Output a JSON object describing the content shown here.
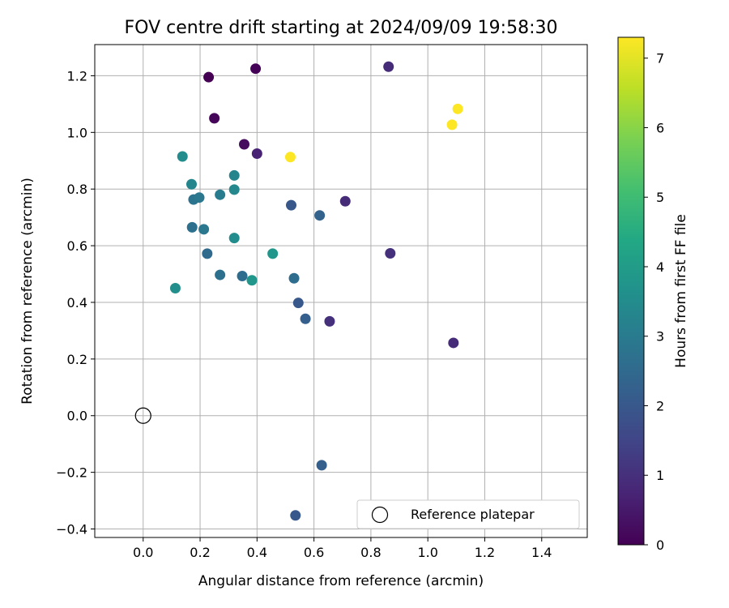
{
  "chart_data": {
    "type": "scatter",
    "title": "FOV centre drift starting at 2024/09/09 19:58:30",
    "xlabel": "Angular distance from reference (arcmin)",
    "ylabel": "Rotation from reference (arcmin)",
    "xlim": [
      -0.17,
      1.56
    ],
    "ylim": [
      -0.43,
      1.31
    ],
    "xticks": [
      0.0,
      0.2,
      0.4,
      0.6,
      0.8,
      1.0,
      1.2,
      1.4
    ],
    "xtick_labels": [
      "0.0",
      "0.2",
      "0.4",
      "0.6",
      "0.8",
      "1.0",
      "1.2",
      "1.4"
    ],
    "yticks": [
      -0.4,
      -0.2,
      0.0,
      0.2,
      0.4,
      0.6,
      0.8,
      1.0,
      1.2
    ],
    "ytick_labels": [
      "−0.4",
      "−0.2",
      "0.0",
      "0.2",
      "0.4",
      "0.6",
      "0.8",
      "1.0",
      "1.2"
    ],
    "grid": true,
    "legend": {
      "placement": "lower-right",
      "entries": [
        "Reference platepar"
      ]
    },
    "colorbar": {
      "label": "Hours from first FF file",
      "range": [
        0,
        7.3
      ],
      "ticks": [
        0,
        1,
        2,
        3,
        4,
        5,
        6,
        7
      ],
      "tick_labels": [
        "0",
        "1",
        "2",
        "3",
        "4",
        "5",
        "6",
        "7"
      ],
      "colormap": "viridis"
    },
    "reference_point": {
      "x": 0.0,
      "y": 0.0
    },
    "series": [
      {
        "points": [
          {
            "x": 0.23,
            "y": 1.195,
            "c": 0.0
          },
          {
            "x": 0.395,
            "y": 1.225,
            "c": 0.05
          },
          {
            "x": 0.25,
            "y": 1.05,
            "c": 0.1
          },
          {
            "x": 0.355,
            "y": 0.958,
            "c": 0.2
          },
          {
            "x": 0.4,
            "y": 0.925,
            "c": 0.7
          },
          {
            "x": 0.862,
            "y": 1.232,
            "c": 0.9
          },
          {
            "x": 0.71,
            "y": 0.757,
            "c": 0.9
          },
          {
            "x": 0.868,
            "y": 0.573,
            "c": 1.0
          },
          {
            "x": 0.655,
            "y": 0.333,
            "c": 1.0
          },
          {
            "x": 1.09,
            "y": 0.257,
            "c": 0.9
          },
          {
            "x": 0.52,
            "y": 0.743,
            "c": 2.0
          },
          {
            "x": 0.62,
            "y": 0.707,
            "c": 2.3
          },
          {
            "x": 0.545,
            "y": 0.398,
            "c": 2.0
          },
          {
            "x": 0.57,
            "y": 0.342,
            "c": 2.2
          },
          {
            "x": 0.53,
            "y": 0.485,
            "c": 2.6
          },
          {
            "x": 0.627,
            "y": -0.175,
            "c": 2.2
          },
          {
            "x": 0.535,
            "y": -0.352,
            "c": 2.0
          },
          {
            "x": 0.27,
            "y": 0.497,
            "c": 2.7
          },
          {
            "x": 0.348,
            "y": 0.493,
            "c": 2.6
          },
          {
            "x": 0.225,
            "y": 0.572,
            "c": 2.5
          },
          {
            "x": 0.172,
            "y": 0.665,
            "c": 2.7
          },
          {
            "x": 0.213,
            "y": 0.658,
            "c": 2.9
          },
          {
            "x": 0.177,
            "y": 0.763,
            "c": 2.8
          },
          {
            "x": 0.197,
            "y": 0.77,
            "c": 2.9
          },
          {
            "x": 0.27,
            "y": 0.78,
            "c": 3.0
          },
          {
            "x": 0.17,
            "y": 0.817,
            "c": 3.3
          },
          {
            "x": 0.32,
            "y": 0.848,
            "c": 3.3
          },
          {
            "x": 0.32,
            "y": 0.798,
            "c": 3.4
          },
          {
            "x": 0.138,
            "y": 0.915,
            "c": 3.5
          },
          {
            "x": 0.32,
            "y": 0.627,
            "c": 3.5
          },
          {
            "x": 0.113,
            "y": 0.45,
            "c": 3.6
          },
          {
            "x": 0.382,
            "y": 0.478,
            "c": 3.8
          },
          {
            "x": 0.455,
            "y": 0.572,
            "c": 3.8
          },
          {
            "x": 0.517,
            "y": 0.913,
            "c": 7.3
          },
          {
            "x": 1.085,
            "y": 1.027,
            "c": 7.3
          },
          {
            "x": 1.105,
            "y": 1.083,
            "c": 7.3
          }
        ]
      }
    ]
  }
}
